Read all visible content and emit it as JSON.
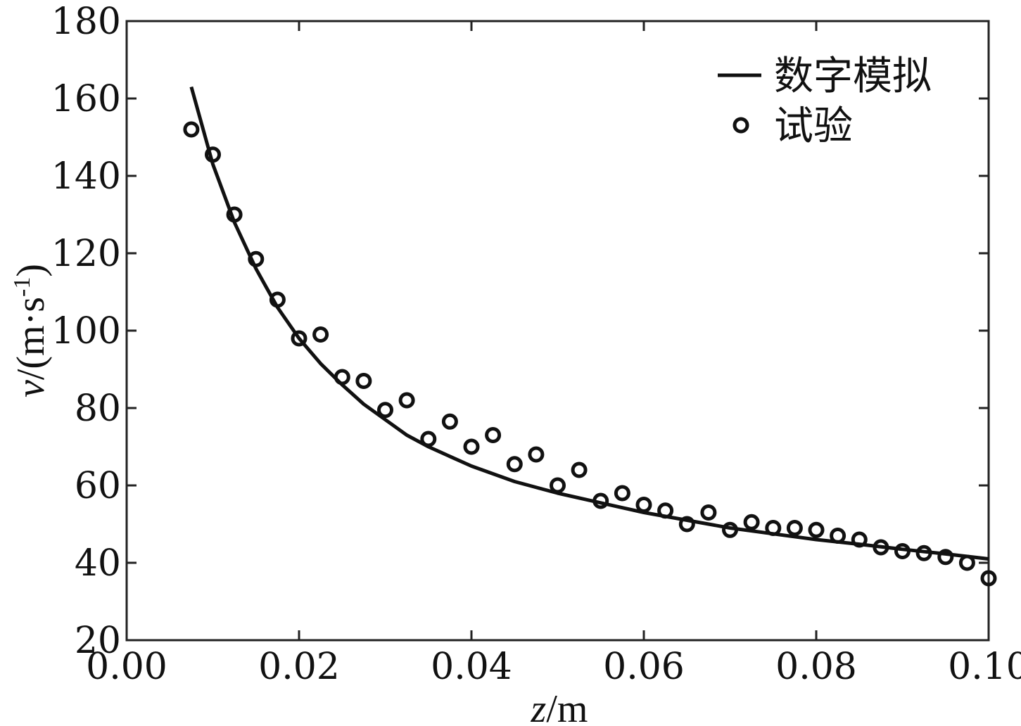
{
  "chart_data": {
    "type": "scatter",
    "xlabel": {
      "var": "z",
      "unit": "/m"
    },
    "ylabel": {
      "var": "v",
      "unit": "/(m·s",
      "sup": "-1",
      "close": ")"
    },
    "xlim": [
      0.0,
      0.1
    ],
    "ylim": [
      20,
      180
    ],
    "xticks": [
      "0.00",
      "0.02",
      "0.04",
      "0.06",
      "0.08",
      "0.10"
    ],
    "yticks": [
      "20",
      "40",
      "60",
      "80",
      "100",
      "120",
      "140",
      "160",
      "180"
    ],
    "grid": false,
    "legend_position": "top-right",
    "series": [
      {
        "name": "数字模拟",
        "kind": "line",
        "color": "#111111",
        "x": [
          0.0075,
          0.01,
          0.0125,
          0.015,
          0.0175,
          0.02,
          0.0225,
          0.025,
          0.0275,
          0.03,
          0.0325,
          0.035,
          0.0375,
          0.04,
          0.045,
          0.05,
          0.055,
          0.06,
          0.065,
          0.07,
          0.075,
          0.08,
          0.085,
          0.09,
          0.095,
          0.1
        ],
        "y": [
          163,
          143,
          128,
          116,
          106,
          98,
          91.5,
          86,
          81,
          77,
          73,
          70,
          67.5,
          65,
          61,
          58,
          55.5,
          53,
          51,
          49,
          47.5,
          46,
          44.8,
          43.5,
          42.3,
          41
        ]
      },
      {
        "name": "试验",
        "kind": "scatter",
        "color": "#111111",
        "x": [
          0.0075,
          0.01,
          0.0125,
          0.015,
          0.0175,
          0.02,
          0.0225,
          0.025,
          0.0275,
          0.03,
          0.0325,
          0.035,
          0.0375,
          0.04,
          0.0425,
          0.045,
          0.0475,
          0.05,
          0.0525,
          0.055,
          0.0575,
          0.06,
          0.0625,
          0.065,
          0.0675,
          0.07,
          0.0725,
          0.075,
          0.0775,
          0.08,
          0.0825,
          0.085,
          0.0875,
          0.09,
          0.0925,
          0.095,
          0.0975,
          0.1
        ],
        "y": [
          152,
          145.5,
          130,
          118.5,
          108,
          98,
          99,
          88,
          87,
          79.5,
          82,
          72,
          76.5,
          70,
          73,
          65.5,
          68,
          60,
          64,
          56,
          58,
          55,
          53.5,
          50,
          53,
          48.5,
          50.5,
          49,
          49,
          48.5,
          47,
          46,
          44,
          43,
          42.5,
          41.5,
          40,
          36
        ]
      }
    ]
  }
}
